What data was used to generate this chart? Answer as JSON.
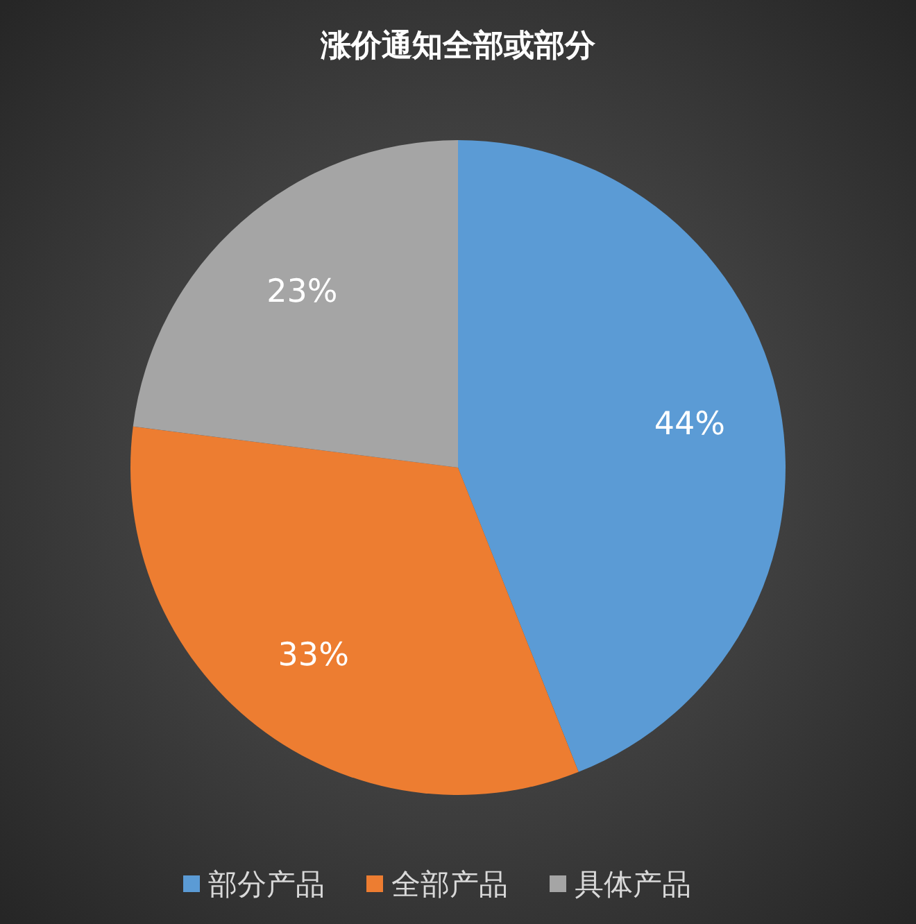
{
  "chart_data": {
    "type": "pie",
    "title": "涨价通知全部或部分",
    "categories": [
      "部分产品",
      "全部产品",
      "具体产品"
    ],
    "values": [
      44,
      33,
      23
    ],
    "colors": [
      "#5b9bd5",
      "#ed7d31",
      "#a5a5a5"
    ],
    "value_labels": [
      "44%",
      "33%",
      "23%"
    ],
    "legend": "bottom"
  }
}
